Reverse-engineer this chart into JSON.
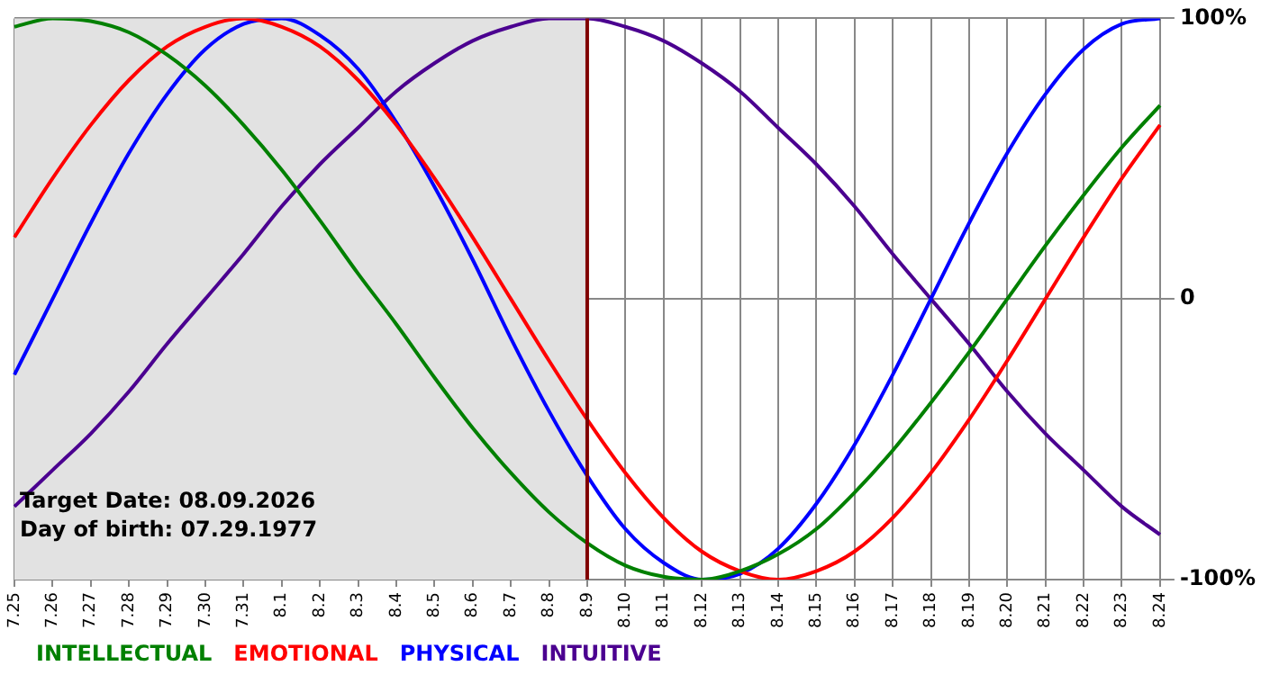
{
  "chart_data": {
    "type": "line",
    "categories": [
      "7.25",
      "7.26",
      "7.27",
      "7.28",
      "7.29",
      "7.30",
      "7.31",
      "8.1",
      "8.2",
      "8.3",
      "8.4",
      "8.5",
      "8.6",
      "8.7",
      "8.8",
      "8.9",
      "8.10",
      "8.11",
      "8.12",
      "8.13",
      "8.14",
      "8.15",
      "8.16",
      "8.17",
      "8.18",
      "8.19",
      "8.20",
      "8.21",
      "8.22",
      "8.23",
      "8.24"
    ],
    "series": [
      {
        "name": "INTELLECTUAL",
        "color": "#008000",
        "values": [
          97,
          100,
          99,
          95,
          87,
          76,
          62,
          46,
          28,
          9,
          -9,
          -28,
          -46,
          -62,
          -76,
          -87,
          -95,
          -99,
          -100,
          -97,
          -91,
          -82,
          -69,
          -54,
          -37,
          -19,
          0,
          19,
          37,
          54,
          69
        ]
      },
      {
        "name": "EMOTIONAL",
        "color": "#ff0000",
        "values": [
          22,
          43,
          62,
          78,
          90,
          97,
          100,
          97,
          90,
          78,
          62,
          43,
          22,
          0,
          -22,
          -43,
          -62,
          -78,
          -90,
          -97,
          -100,
          -97,
          -90,
          -78,
          -62,
          -43,
          -22,
          0,
          22,
          43,
          62
        ]
      },
      {
        "name": "PHYSICAL",
        "color": "#0000ff",
        "values": [
          -27,
          0,
          27,
          52,
          73,
          89,
          98,
          100,
          94,
          82,
          63,
          40,
          14,
          -14,
          -40,
          -63,
          -82,
          -94,
          -100,
          -98,
          -89,
          -73,
          -52,
          -27,
          0,
          27,
          52,
          73,
          89,
          98,
          100
        ]
      },
      {
        "name": "INTUITIVE",
        "color": "#4b0090",
        "values": [
          -74,
          -61,
          -48,
          -33,
          -16,
          0,
          16,
          33,
          48,
          61,
          74,
          84,
          92,
          97,
          100,
          100,
          97,
          92,
          84,
          74,
          61,
          48,
          33,
          16,
          0,
          -16,
          -33,
          -48,
          -61,
          -74,
          -84
        ]
      }
    ],
    "ylim": [
      -100,
      100
    ],
    "yticks": [
      {
        "value": -100,
        "label": "-100%"
      },
      0,
      {
        "value": 100,
        "label": "100%"
      }
    ],
    "grid": true,
    "legend": "bottom left",
    "marker": "none",
    "line_style": "solid",
    "ref_lines": [
      {
        "axis": "x",
        "value": "8.9",
        "color": "#800000"
      }
    ],
    "bands": [
      {
        "axis": "x",
        "from": "7.25",
        "to": "8.9",
        "color": "#e2e2e2"
      }
    ],
    "annotations": [
      "Target Date: 08.09.2026",
      "Day of birth: 07.29.1977"
    ]
  }
}
